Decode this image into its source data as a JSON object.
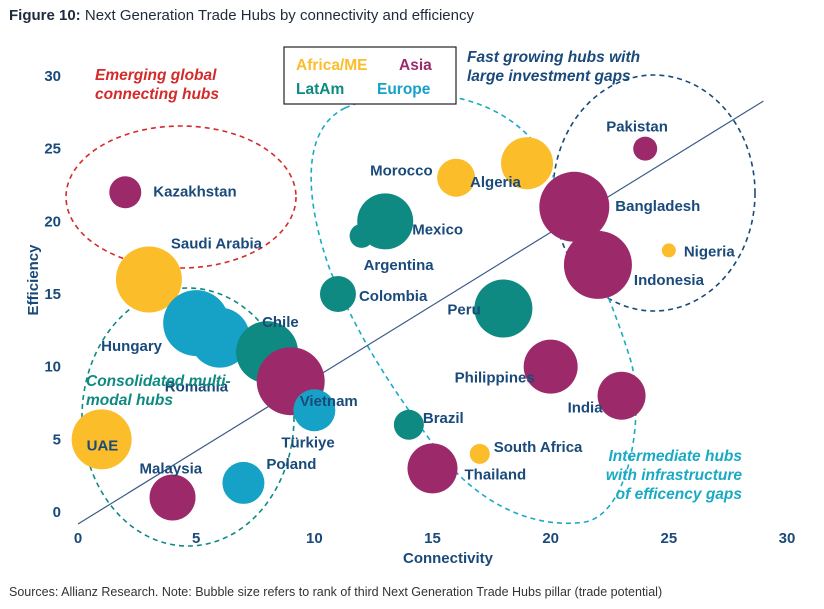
{
  "figure": {
    "label": "Figure 10:",
    "title": "Next Generation Trade Hubs by connectivity and efficiency"
  },
  "sources": "Sources: Allianz Research. Note: Bubble size refers to rank of third Next Generation Trade Hubs pillar (trade potential)",
  "colors": {
    "africa_me": "#fbbd2a",
    "asia": "#9c2a6a",
    "latam": "#0f8a82",
    "europe": "#15a2c6",
    "axis_text": "#1a4a7a",
    "trend_line": "#3c5a88",
    "emerging": "#d42b2b",
    "consolidated": "#0f8a82",
    "fast_growing": "#1a4a7a",
    "intermediate": "#1aaac4"
  },
  "legend": {
    "africa_me": "Africa/ME",
    "asia": "Asia",
    "latam": "LatAm",
    "europe": "Europe"
  },
  "groups": {
    "emerging": [
      "Emerging global",
      "connecting hubs"
    ],
    "fast_growing": [
      "Fast growing hubs with",
      "large investment gaps"
    ],
    "consolidated": [
      "Consolidated multi-",
      "modal hubs"
    ],
    "intermediate": [
      "Intermediate hubs",
      "with infrastructure",
      "of efficency gaps"
    ]
  },
  "chart_data": {
    "type": "scatter",
    "title": "Next Generation Trade Hubs by connectivity and efficiency",
    "xlabel": "Connectivity",
    "ylabel": "Efficiency",
    "xlim": [
      0,
      30
    ],
    "ylim": [
      0,
      30
    ],
    "xticks": [
      0,
      5,
      10,
      15,
      20,
      25,
      30
    ],
    "yticks": [
      0,
      5,
      10,
      15,
      20,
      25,
      30
    ],
    "size_note": "Bubble size refers to rank of third Next Generation Trade Hubs pillar (trade potential)",
    "trend_line": {
      "from": [
        0,
        0
      ],
      "to": [
        29,
        28
      ]
    },
    "points": [
      {
        "name": "Kazakhstan",
        "region": "asia",
        "x": 2,
        "y": 22,
        "size": 16
      },
      {
        "name": "Saudi Arabia",
        "region": "africa_me",
        "x": 3,
        "y": 16,
        "size": 33
      },
      {
        "name": "Hungary",
        "region": "europe",
        "x": 5,
        "y": 13,
        "size": 33
      },
      {
        "name": "Romania",
        "region": "europe",
        "x": 6,
        "y": 12,
        "size": 30
      },
      {
        "name": "Chile",
        "region": "latam",
        "x": 8,
        "y": 11,
        "size": 31
      },
      {
        "name": "Vietnam",
        "region": "asia",
        "x": 9,
        "y": 9,
        "size": 34
      },
      {
        "name": "Türkiye",
        "region": "europe",
        "x": 10,
        "y": 7,
        "size": 21
      },
      {
        "name": "UAE",
        "region": "africa_me",
        "x": 1,
        "y": 5,
        "size": 30
      },
      {
        "name": "Malaysia",
        "region": "asia",
        "x": 4,
        "y": 1,
        "size": 23
      },
      {
        "name": "Poland",
        "region": "europe",
        "x": 7,
        "y": 2,
        "size": 21
      },
      {
        "name": "Morocco",
        "region": "africa_me",
        "x": 16,
        "y": 23,
        "size": 19
      },
      {
        "name": "Algeria",
        "region": "africa_me",
        "x": 19,
        "y": 24,
        "size": 26
      },
      {
        "name": "Mexico",
        "region": "latam",
        "x": 13,
        "y": 20,
        "size": 28
      },
      {
        "name": "Argentina",
        "region": "latam",
        "x": 12,
        "y": 19,
        "size": 12
      },
      {
        "name": "Colombia",
        "region": "latam",
        "x": 11,
        "y": 15,
        "size": 18
      },
      {
        "name": "Peru",
        "region": "latam",
        "x": 18,
        "y": 14,
        "size": 29
      },
      {
        "name": "Pakistan",
        "region": "asia",
        "x": 24,
        "y": 25,
        "size": 12
      },
      {
        "name": "Bangladesh",
        "region": "asia",
        "x": 21,
        "y": 21,
        "size": 35
      },
      {
        "name": "Nigeria",
        "region": "africa_me",
        "x": 25,
        "y": 18,
        "size": 7
      },
      {
        "name": "Indonesia",
        "region": "asia",
        "x": 22,
        "y": 17,
        "size": 34
      },
      {
        "name": "Philippines",
        "region": "asia",
        "x": 20,
        "y": 10,
        "size": 27
      },
      {
        "name": "India",
        "region": "asia",
        "x": 23,
        "y": 8,
        "size": 24
      },
      {
        "name": "Brazil",
        "region": "latam",
        "x": 14,
        "y": 6,
        "size": 15
      },
      {
        "name": "South Africa",
        "region": "africa_me",
        "x": 17,
        "y": 4,
        "size": 10
      },
      {
        "name": "Thailand",
        "region": "asia",
        "x": 15,
        "y": 3,
        "size": 25
      }
    ]
  }
}
